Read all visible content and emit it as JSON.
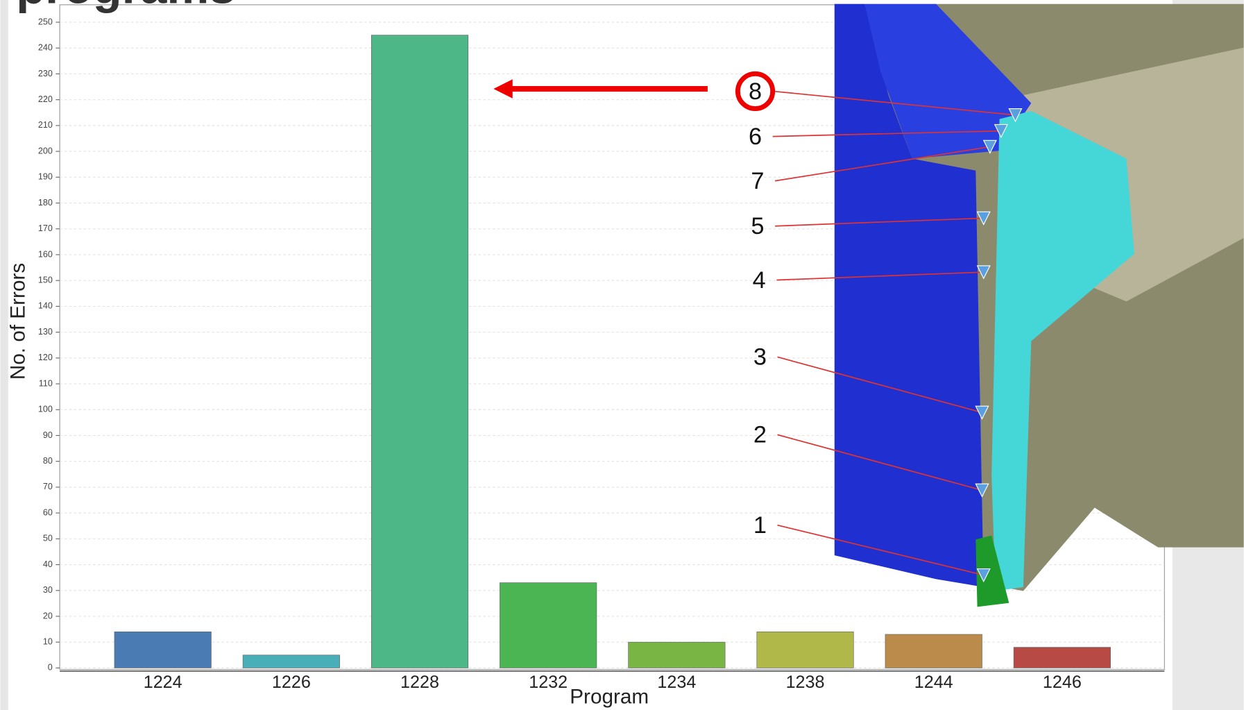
{
  "chart_data": {
    "type": "bar",
    "title": "programs",
    "x_label": "Program",
    "y_label": "No. of Errors",
    "categories": [
      "1224",
      "1226",
      "1228",
      "1232",
      "1234",
      "1238",
      "1244",
      "1246"
    ],
    "values": [
      14,
      5,
      245,
      33,
      10,
      14,
      13,
      8
    ],
    "colors": [
      "#4a7bb2",
      "#4aaeb8",
      "#4db787",
      "#4bb553",
      "#79b545",
      "#b0b84a",
      "#ba8b4a",
      "#b84a45"
    ],
    "ylim": [
      0,
      250
    ],
    "yticks": [
      0,
      10,
      20,
      30,
      40,
      50,
      60,
      70,
      80,
      90,
      100,
      110,
      120,
      130,
      140,
      150,
      160,
      170,
      180,
      190,
      200,
      210,
      220,
      230,
      240,
      250
    ],
    "grid": true,
    "annotations": [
      "8",
      "6",
      "7",
      "5",
      "4",
      "3",
      "2",
      "1"
    ]
  }
}
